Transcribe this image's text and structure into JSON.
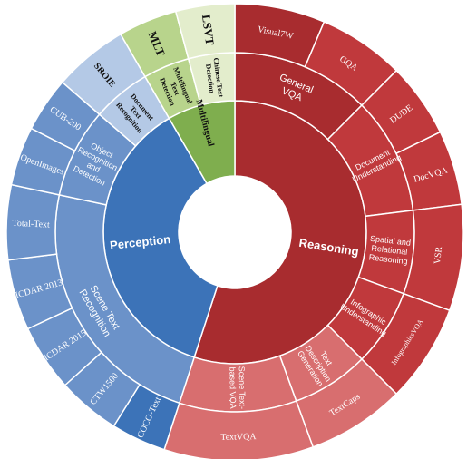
{
  "colors": {
    "reasoning": "#a82c2f",
    "reasoning_leaf": "#c0393c",
    "reasoning_light": "#d86e6f",
    "perception": "#3c73b8",
    "perception_leaf": "#6b92c9",
    "perception_light": "#b4c9e6",
    "multilingual": "#7fae4e",
    "multilingual_sub": "#b8d48c",
    "multilingual_leaf": "#e3edcc"
  },
  "categories": [
    {
      "name": "Reasoning",
      "color_key": "reasoning",
      "subcategories": [
        {
          "name": "General VQA",
          "lines": [
            "General",
            "VQA"
          ],
          "leaves": [
            "Visual7W",
            "GQA"
          ]
        },
        {
          "name": "Document Understanding",
          "lines": [
            "Document",
            "Understanding"
          ],
          "leaves": [
            "DUDE",
            "DocVQA"
          ]
        },
        {
          "name": "Spatial and Relational Reasoning",
          "lines": [
            "Spatial and",
            "Relational",
            "Reasoning"
          ],
          "leaves": [
            "VSR"
          ]
        },
        {
          "name": "Infographic Understanding",
          "lines": [
            "Infographic",
            "Understanding"
          ],
          "leaves": [
            "InfographicsVQA"
          ]
        },
        {
          "name": "Text Description Generation",
          "lines": [
            "Text",
            "Description",
            "Generation"
          ],
          "leaves": [
            "TextCaps"
          ]
        },
        {
          "name": "Scene Text-based VQA",
          "lines": [
            "Scene Text-",
            "based VQA"
          ],
          "leaves": [
            "TextVQA"
          ]
        }
      ]
    },
    {
      "name": "Perception",
      "color_key": "perception",
      "subcategories": [
        {
          "name": "Scene Text Recognition",
          "lines": [
            "Scene Text",
            "Recognition"
          ],
          "leaves": [
            "COCO-Text",
            "CTW1500",
            "ICDAR 2015",
            "ICDAR 2013",
            "Total-Text"
          ]
        },
        {
          "name": "Object Recognition and Detection",
          "lines": [
            "Object",
            "Recognition",
            "and",
            "Detection"
          ],
          "leaves": [
            "OpenImages",
            "CUB-200"
          ]
        },
        {
          "name": "Document Text Recognition",
          "lines": [
            "Document",
            "Text",
            "Recognition"
          ],
          "leaves": [
            "SROIE"
          ]
        }
      ]
    },
    {
      "name": "Multilingual",
      "color_key": "multilingual",
      "subcategories": [
        {
          "name": "Multilingual Text Detection",
          "lines": [
            "Multilingual",
            "Text",
            "Detection"
          ],
          "leaves": [
            "MLT"
          ]
        },
        {
          "name": "Chinese Text Detection",
          "lines": [
            "Chinese Text",
            "Detection"
          ],
          "leaves": [
            "LSVT"
          ]
        }
      ]
    }
  ]
}
